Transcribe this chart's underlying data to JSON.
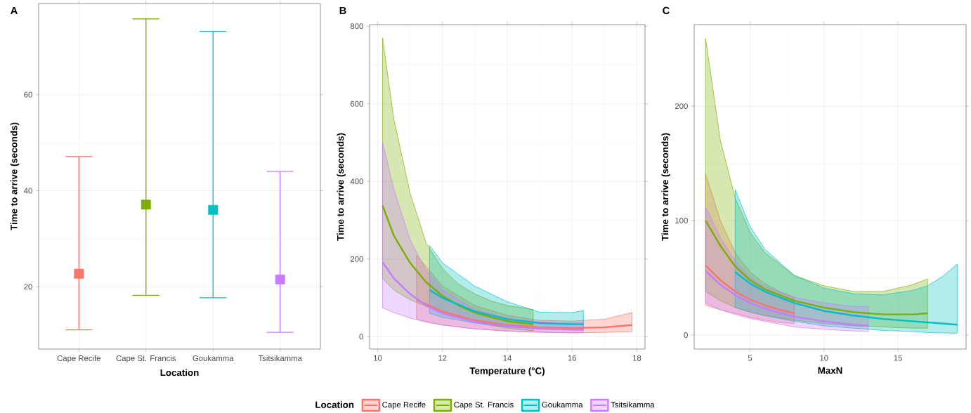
{
  "chart_data": [
    {
      "type": "scatter",
      "title": "A",
      "xlabel": "Location",
      "ylabel": "Time to arrive (seconds)",
      "categories": [
        "Cape Recife",
        "Cape St. Francis",
        "Goukamma",
        "Tsitsikamma"
      ],
      "values": [
        22.7,
        37.1,
        36.0,
        21.5
      ],
      "colors": [
        "#f8766d",
        "#7cae00",
        "#00bfc4",
        "#c77cff"
      ],
      "errors": [
        [
          11.0,
          47.1
        ],
        [
          18.2,
          75.8
        ],
        [
          17.7,
          73.2
        ],
        [
          10.5,
          44.0
        ]
      ],
      "ylim": [
        7,
        79
      ],
      "yticks": [
        20,
        40,
        60
      ],
      "grid": true,
      "marker": "square"
    },
    {
      "type": "line",
      "title": "B",
      "xlabel": "Temperature (°C)",
      "ylabel": "Time to arrive (seconds)",
      "xlim": [
        9.75,
        18.25
      ],
      "xticks": [
        10,
        12,
        14,
        16,
        18
      ],
      "ylim": [
        -32,
        804
      ],
      "yticks": [
        0,
        200,
        400,
        600,
        800
      ],
      "grid": true,
      "legend": "bottom",
      "legend_title": "Location",
      "series": [
        {
          "name": "Cape Recife",
          "color": "#f8766d",
          "x": [
            11.2,
            12,
            13,
            14,
            15,
            16,
            17,
            17.85
          ],
          "values": [
            95,
            65,
            42,
            30,
            24,
            22,
            24,
            30
          ],
          "lower": [
            45,
            30,
            20,
            14,
            11,
            10,
            11,
            13
          ],
          "upper": [
            210,
            130,
            80,
            55,
            42,
            40,
            45,
            62
          ]
        },
        {
          "name": "Cape St. Francis",
          "color": "#7cae00",
          "x": [
            10.15,
            10.5,
            11,
            11.5,
            12,
            12.5,
            13,
            13.5,
            14,
            14.8
          ],
          "values": [
            338,
            260,
            190,
            140,
            105,
            80,
            62,
            50,
            40,
            32
          ],
          "lower": [
            150,
            120,
            95,
            78,
            62,
            50,
            38,
            29,
            22,
            15
          ],
          "upper": [
            770,
            560,
            370,
            240,
            175,
            135,
            110,
            92,
            80,
            70
          ]
        },
        {
          "name": "Goukamma",
          "color": "#00bfc4",
          "x": [
            11.6,
            12,
            13,
            14,
            14.8,
            15,
            16,
            16.35
          ],
          "values": [
            120,
            100,
            65,
            45,
            37,
            35,
            32,
            32
          ],
          "lower": [
            60,
            50,
            35,
            25,
            21,
            20,
            18,
            18
          ],
          "upper": [
            235,
            190,
            130,
            90,
            68,
            63,
            62,
            67
          ]
        },
        {
          "name": "Tsitsikamma",
          "color": "#c77cff",
          "x": [
            10.15,
            10.5,
            11,
            11.5,
            12,
            13,
            14,
            15,
            16,
            16.35
          ],
          "values": [
            192,
            150,
            110,
            80,
            60,
            38,
            27,
            21,
            18,
            18
          ],
          "lower": [
            74,
            62,
            48,
            37,
            30,
            20,
            15,
            12,
            10,
            10
          ],
          "upper": [
            501,
            380,
            250,
            170,
            120,
            70,
            48,
            38,
            36,
            36
          ]
        }
      ]
    },
    {
      "type": "line",
      "title": "C",
      "xlabel": "MaxN",
      "ylabel": "Time to arrive (seconds)",
      "xlim": [
        1.23,
        19.6
      ],
      "xticks": [
        5,
        10,
        15
      ],
      "ylim": [
        -12.3,
        271.3
      ],
      "yticks": [
        0,
        100,
        200
      ],
      "grid": true,
      "series": [
        {
          "color": "#f8766d",
          "x": [
            2,
            3,
            4,
            5,
            6,
            7,
            8
          ],
          "values": [
            61,
            48,
            38,
            31,
            26,
            22,
            19
          ],
          "lower": [
            26,
            22,
            19,
            15.5,
            13,
            11,
            10
          ],
          "upper": [
            141,
            100,
            72,
            55,
            45,
            38,
            33
          ]
        },
        {
          "color": "#7cae00",
          "x": [
            2,
            3,
            4,
            5,
            6,
            8,
            10,
            12,
            14,
            16,
            17
          ],
          "values": [
            100,
            78,
            60,
            48,
            40,
            30,
            24,
            20,
            18,
            18,
            19
          ],
          "lower": [
            38,
            30,
            24,
            20,
            17,
            13,
            10,
            8,
            7,
            6,
            6
          ],
          "upper": [
            259,
            170,
            120,
            90,
            72,
            52,
            43,
            38,
            38,
            44,
            49
          ]
        },
        {
          "color": "#00bfc4",
          "x": [
            4,
            5,
            6,
            8,
            10,
            12,
            14,
            16,
            17,
            18,
            19
          ],
          "values": [
            55,
            45,
            38,
            28,
            21,
            17,
            14,
            12,
            11,
            10,
            9
          ],
          "lower": [
            24,
            20,
            17,
            12,
            8,
            6,
            4,
            3,
            2.2,
            1.8,
            1.6
          ],
          "upper": [
            127,
            95,
            75,
            52,
            41,
            36,
            35,
            39,
            43,
            51,
            62
          ]
        },
        {
          "color": "#c77cff",
          "x": [
            2,
            3,
            4,
            5,
            6,
            8,
            10,
            12,
            13
          ],
          "values": [
            56,
            44,
            35,
            28,
            23,
            16,
            12,
            9,
            8
          ],
          "lower": [
            28,
            22,
            18,
            14.5,
            12,
            7,
            5,
            3.5,
            3
          ],
          "upper": [
            112,
            85,
            65,
            50,
            42,
            33,
            28,
            25,
            25
          ]
        }
      ]
    }
  ]
}
